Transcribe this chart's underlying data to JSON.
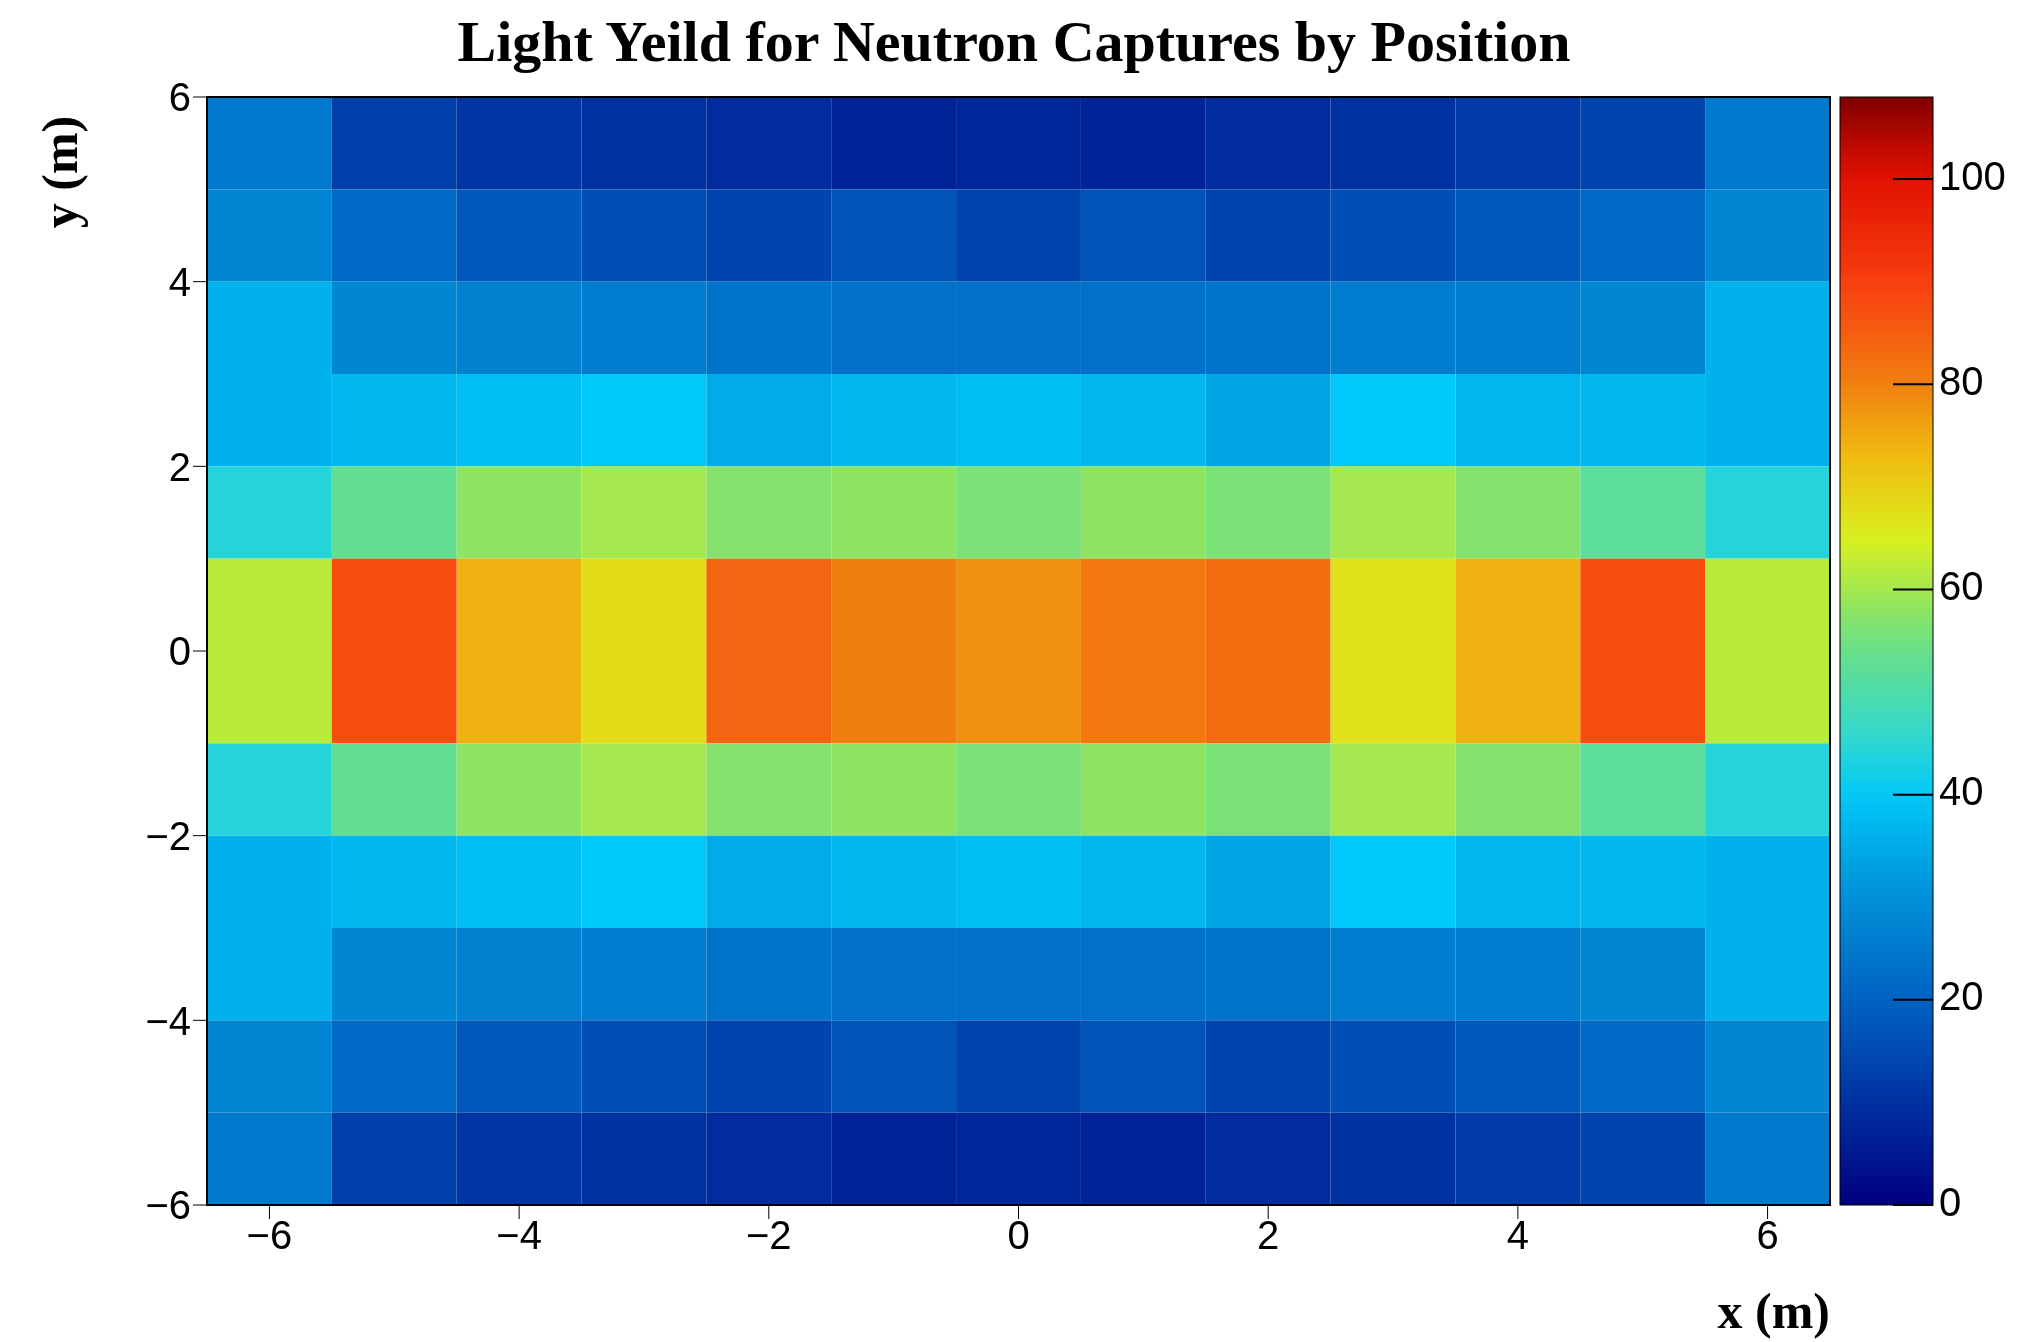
{
  "chart_data": {
    "type": "heatmap",
    "title": "Light Yeild for Neutron Captures by Position",
    "xlabel": "x (m)",
    "ylabel": "y (m)",
    "xlim": [
      -6.5,
      6.5
    ],
    "xticks": [
      {
        "value": -6,
        "label": "−6"
      },
      {
        "value": -4,
        "label": "−4"
      },
      {
        "value": -2,
        "label": "−2"
      },
      0,
      2,
      4,
      6
    ],
    "ylim": [
      -6,
      6
    ],
    "yticks": [
      {
        "value": -6,
        "label": "−6"
      },
      {
        "value": -4,
        "label": "−4"
      },
      {
        "value": -2,
        "label": "−2"
      },
      0,
      2,
      4,
      6
    ],
    "clim": [
      0,
      108
    ],
    "cticks": [
      0,
      20,
      40,
      60,
      80,
      100
    ],
    "cells": [
      [
        25,
        13,
        11,
        10,
        9,
        7,
        8,
        7,
        9,
        10,
        12,
        14,
        25
      ],
      [
        28,
        22,
        18,
        16,
        14,
        17,
        14,
        17,
        14,
        16,
        18,
        22,
        28
      ],
      [
        36,
        28,
        27,
        26,
        24,
        23,
        23,
        23,
        24,
        26,
        26,
        28,
        36
      ],
      [
        36,
        37,
        38,
        40,
        35,
        37,
        38,
        37,
        34,
        40,
        37,
        37,
        36
      ],
      [
        44,
        53,
        58,
        60,
        57,
        58,
        56,
        58,
        56,
        60,
        57,
        52,
        44
      ],
      [
        62,
        88,
        74,
        68,
        84,
        80,
        78,
        81,
        83,
        67,
        74,
        88,
        62
      ],
      [
        62,
        88,
        74,
        68,
        84,
        80,
        78,
        81,
        83,
        67,
        74,
        88,
        62
      ],
      [
        44,
        53,
        58,
        60,
        57,
        58,
        56,
        58,
        56,
        60,
        57,
        52,
        44
      ],
      [
        36,
        37,
        38,
        40,
        35,
        37,
        38,
        37,
        34,
        40,
        37,
        37,
        36
      ],
      [
        36,
        28,
        27,
        26,
        24,
        23,
        23,
        23,
        24,
        26,
        26,
        28,
        36
      ],
      [
        28,
        22,
        18,
        16,
        14,
        17,
        14,
        17,
        14,
        16,
        18,
        22,
        28
      ],
      [
        25,
        13,
        11,
        10,
        9,
        7,
        8,
        7,
        9,
        10,
        12,
        14,
        25
      ]
    ]
  }
}
